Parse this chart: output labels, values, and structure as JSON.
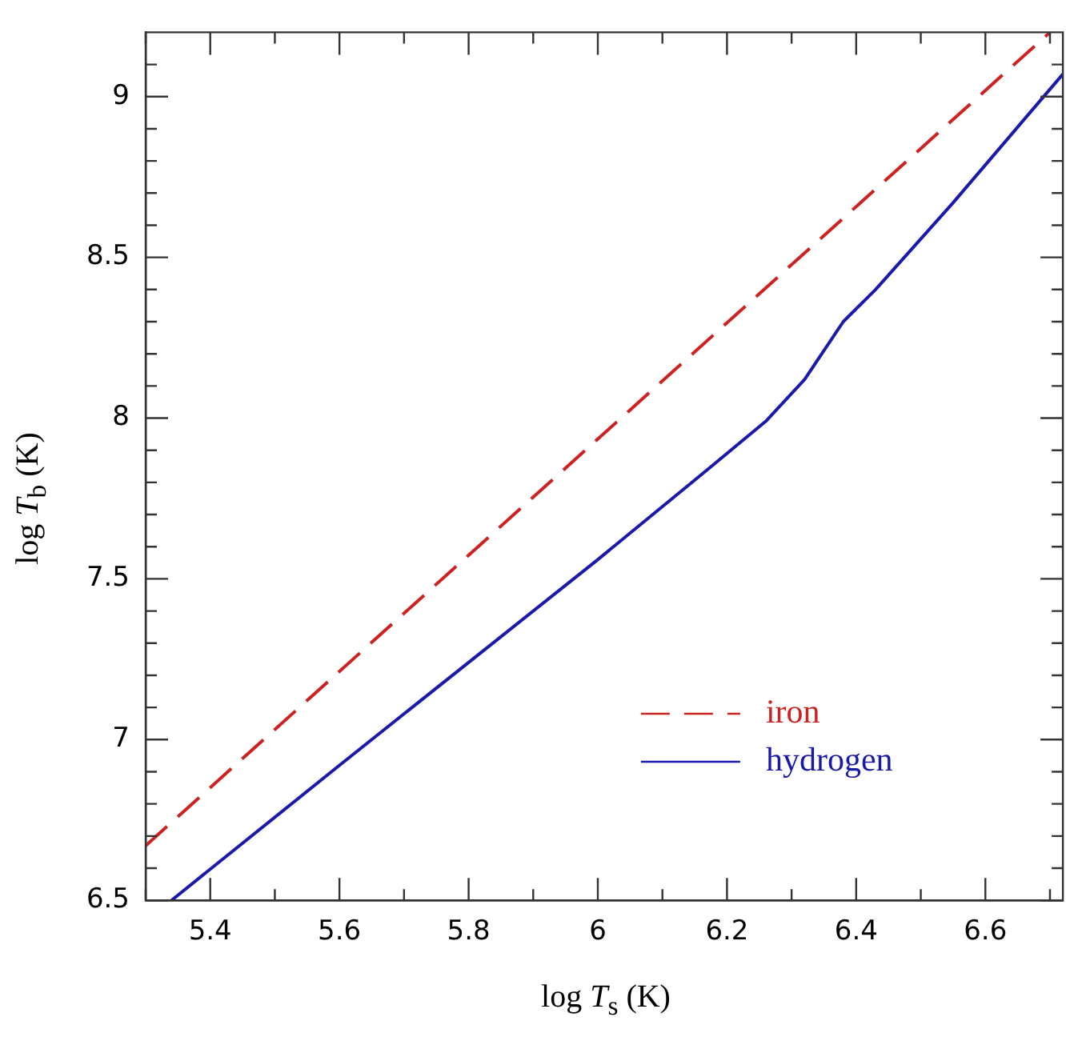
{
  "chart_data": {
    "type": "line",
    "xlabel": "log T$_{s}$ (K)",
    "ylabel": "log T$_{b}$ (K)",
    "xlim": [
      5.3,
      6.72
    ],
    "ylim": [
      6.5,
      9.2
    ],
    "xticks": [
      {
        "value": 5.3,
        "label": null
      },
      5.4,
      {
        "value": 5.5,
        "label": null
      },
      5.6,
      {
        "value": 5.7,
        "label": null
      },
      5.8,
      {
        "value": 5.9,
        "label": null
      },
      6,
      {
        "value": 6.1,
        "label": null
      },
      6.2,
      {
        "value": 6.3,
        "label": null
      },
      6.4,
      {
        "value": 6.5,
        "label": null
      },
      6.6,
      {
        "value": 6.7,
        "label": null
      }
    ],
    "yticks": [
      6.5,
      {
        "value": 6.6,
        "label": null
      },
      {
        "value": 6.7,
        "label": null
      },
      {
        "value": 6.8,
        "label": null
      },
      {
        "value": 6.9,
        "label": null
      },
      7,
      {
        "value": 7.1,
        "label": null
      },
      {
        "value": 7.2,
        "label": null
      },
      {
        "value": 7.3,
        "label": null
      },
      {
        "value": 7.4,
        "label": null
      },
      7.5,
      {
        "value": 7.6,
        "label": null
      },
      {
        "value": 7.7,
        "label": null
      },
      {
        "value": 7.8,
        "label": null
      },
      {
        "value": 7.9,
        "label": null
      },
      8,
      {
        "value": 8.1,
        "label": null
      },
      {
        "value": 8.2,
        "label": null
      },
      {
        "value": 8.3,
        "label": null
      },
      {
        "value": 8.4,
        "label": null
      },
      8.5,
      {
        "value": 8.6,
        "label": null
      },
      {
        "value": 8.7,
        "label": null
      },
      {
        "value": 8.8,
        "label": null
      },
      {
        "value": 8.9,
        "label": null
      },
      9,
      {
        "value": 9.1,
        "label": null
      }
    ],
    "grid": false,
    "legend": "bottom right",
    "marker": "none",
    "series": [
      {
        "name": "iron",
        "color": "#cc2222",
        "line_style": "dashed",
        "x": [
          5.3,
          6.7
        ],
        "values": [
          6.67,
          9.2
        ]
      },
      {
        "name": "hydrogen",
        "color": "#1a1aaa",
        "line_style": "solid",
        "x": [
          5.34,
          5.6,
          5.8,
          6.0,
          6.17,
          6.26,
          6.32,
          6.38,
          6.43,
          6.55,
          6.72
        ],
        "values": [
          6.5,
          6.92,
          7.24,
          7.56,
          7.84,
          7.99,
          8.12,
          8.3,
          8.4,
          8.67,
          9.07
        ]
      }
    ]
  }
}
